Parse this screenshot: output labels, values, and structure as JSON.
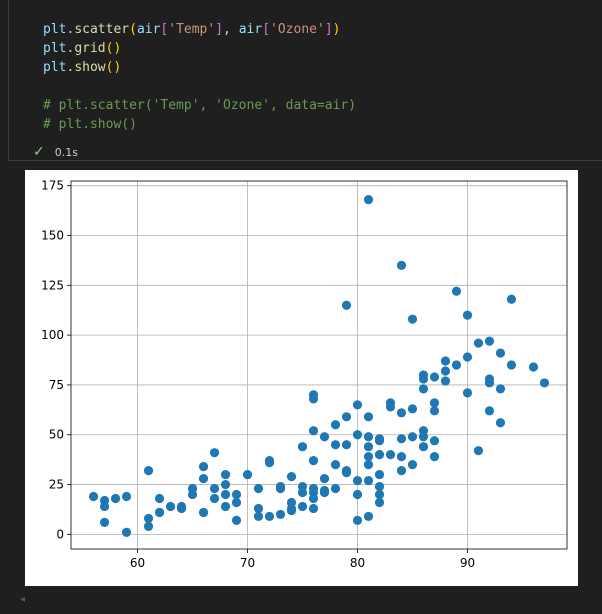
{
  "code": {
    "line1": [
      "plt",
      ".",
      "scatter",
      "(",
      "air",
      "[",
      "'Temp'",
      "]",
      ", ",
      "air",
      "[",
      "'Ozone'",
      "]",
      ")"
    ],
    "line2": [
      "plt",
      ".",
      "grid",
      "(",
      ")"
    ],
    "line3": [
      "plt",
      ".",
      "show",
      "(",
      ")"
    ],
    "line5": "# plt.scatter('Temp', 'Ozone', data=air)",
    "line6": "# plt.show()"
  },
  "status": {
    "time": "0.1s"
  },
  "collapse_arrow": "◂",
  "colors": {
    "point": "#1f77b4",
    "grid": "#b0b0b0"
  },
  "chart_data": {
    "type": "scatter",
    "xlim": [
      53.95,
      99.05
    ],
    "ylim": [
      -7.35,
      177.35
    ],
    "grid": true,
    "xticks": [
      60,
      70,
      80,
      90
    ],
    "yticks": [
      0,
      25,
      50,
      75,
      100,
      125,
      150,
      175
    ],
    "points": [
      [
        56,
        19
      ],
      [
        57,
        17
      ],
      [
        57,
        14
      ],
      [
        57,
        6
      ],
      [
        58,
        18
      ],
      [
        59,
        19
      ],
      [
        59,
        1
      ],
      [
        61,
        32
      ],
      [
        61,
        8
      ],
      [
        61,
        4
      ],
      [
        62,
        18
      ],
      [
        62,
        11
      ],
      [
        63,
        14
      ],
      [
        64,
        13
      ],
      [
        64,
        14
      ],
      [
        65,
        20
      ],
      [
        65,
        23
      ],
      [
        66,
        34
      ],
      [
        66,
        28
      ],
      [
        66,
        11
      ],
      [
        67,
        41
      ],
      [
        67,
        23
      ],
      [
        67,
        18
      ],
      [
        68,
        30
      ],
      [
        68,
        25
      ],
      [
        68,
        20
      ],
      [
        68,
        14
      ],
      [
        69,
        20
      ],
      [
        69,
        16
      ],
      [
        69,
        7
      ],
      [
        70,
        30
      ],
      [
        71,
        23
      ],
      [
        71,
        13
      ],
      [
        71,
        9
      ],
      [
        72,
        37
      ],
      [
        72,
        36
      ],
      [
        72,
        9
      ],
      [
        73,
        24
      ],
      [
        73,
        23
      ],
      [
        73,
        10
      ],
      [
        74,
        29
      ],
      [
        74,
        16
      ],
      [
        74,
        13
      ],
      [
        74,
        12
      ],
      [
        75,
        44
      ],
      [
        75,
        24
      ],
      [
        75,
        21
      ],
      [
        75,
        14
      ],
      [
        76,
        70
      ],
      [
        76,
        68
      ],
      [
        76,
        52
      ],
      [
        76,
        37
      ],
      [
        76,
        23
      ],
      [
        76,
        21
      ],
      [
        76,
        18
      ],
      [
        76,
        13
      ],
      [
        77,
        49
      ],
      [
        77,
        28
      ],
      [
        77,
        22
      ],
      [
        77,
        21
      ],
      [
        78,
        55
      ],
      [
        78,
        45
      ],
      [
        78,
        35
      ],
      [
        78,
        23
      ],
      [
        79,
        115
      ],
      [
        79,
        59
      ],
      [
        79,
        45
      ],
      [
        79,
        32
      ],
      [
        79,
        31
      ],
      [
        80,
        65
      ],
      [
        80,
        50
      ],
      [
        80,
        27
      ],
      [
        80,
        20
      ],
      [
        80,
        7
      ],
      [
        81,
        168
      ],
      [
        81,
        59
      ],
      [
        81,
        49
      ],
      [
        81,
        44
      ],
      [
        81,
        39
      ],
      [
        81,
        35
      ],
      [
        81,
        27
      ],
      [
        81,
        9
      ],
      [
        82,
        48
      ],
      [
        82,
        47
      ],
      [
        82,
        40
      ],
      [
        82,
        30
      ],
      [
        82,
        24
      ],
      [
        82,
        20
      ],
      [
        82,
        16
      ],
      [
        83,
        66
      ],
      [
        83,
        64
      ],
      [
        83,
        40
      ],
      [
        84,
        135
      ],
      [
        84,
        61
      ],
      [
        84,
        48
      ],
      [
        84,
        39
      ],
      [
        84,
        32
      ],
      [
        85,
        108
      ],
      [
        85,
        63
      ],
      [
        85,
        49
      ],
      [
        85,
        35
      ],
      [
        86,
        80
      ],
      [
        86,
        78
      ],
      [
        86,
        73
      ],
      [
        86,
        52
      ],
      [
        86,
        49
      ],
      [
        86,
        44
      ],
      [
        87,
        79
      ],
      [
        87,
        66
      ],
      [
        87,
        62
      ],
      [
        87,
        47
      ],
      [
        87,
        39
      ],
      [
        88,
        87
      ],
      [
        88,
        82
      ],
      [
        88,
        77
      ],
      [
        89,
        122
      ],
      [
        89,
        85
      ],
      [
        90,
        110
      ],
      [
        90,
        89
      ],
      [
        90,
        71
      ],
      [
        91,
        96
      ],
      [
        91,
        42
      ],
      [
        92,
        97
      ],
      [
        92,
        78
      ],
      [
        92,
        76
      ],
      [
        92,
        62
      ],
      [
        93,
        91
      ],
      [
        93,
        73
      ],
      [
        93,
        56
      ],
      [
        94,
        118
      ],
      [
        94,
        85
      ],
      [
        96,
        84
      ],
      [
        97,
        76
      ]
    ]
  }
}
